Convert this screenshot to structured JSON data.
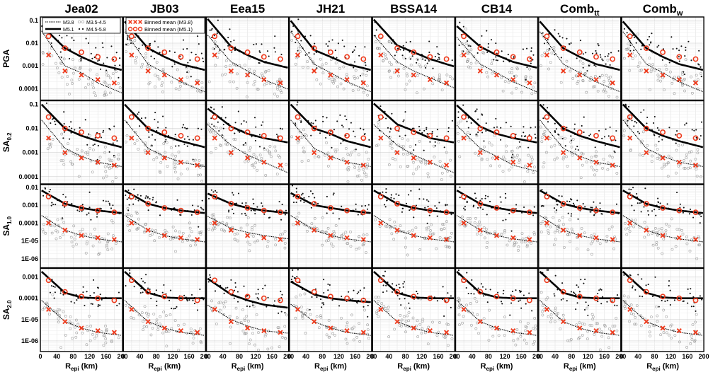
{
  "figure": {
    "columns": [
      {
        "name": "Jea02",
        "base": "Jea02",
        "sub": ""
      },
      {
        "name": "JB03",
        "base": "JB03",
        "sub": ""
      },
      {
        "name": "Eea15",
        "base": "Eea15",
        "sub": ""
      },
      {
        "name": "JH21",
        "base": "JH21",
        "sub": ""
      },
      {
        "name": "BSSA14",
        "base": "BSSA14",
        "sub": ""
      },
      {
        "name": "CB14",
        "base": "CB14",
        "sub": ""
      },
      {
        "name": "Combtt",
        "base": "Comb",
        "sub": "tt"
      },
      {
        "name": "Combw",
        "base": "Comb",
        "sub": "w"
      }
    ],
    "rows": [
      {
        "name": "PGA",
        "base": "PGA",
        "sub": ""
      },
      {
        "name": "SA0.2",
        "base": "SA",
        "sub": "0.2"
      },
      {
        "name": "SA1.0",
        "base": "SA",
        "sub": "1.0"
      },
      {
        "name": "SA2.0",
        "base": "SA",
        "sub": "2.0"
      }
    ],
    "xlabel": {
      "base": "R",
      "sub": "epi",
      "unit": " (km)"
    }
  },
  "legend_left": {
    "entries": [
      "M3.8",
      "M5.1",
      "M3.5-4.5",
      "M4.5-5.8"
    ]
  },
  "legend_right": {
    "entries": [
      "Binned mean (M3.8)",
      "Binned mean (M5.1)"
    ]
  },
  "colors": {
    "curve": "#000000",
    "obs_large": "#111111",
    "obs_small": "#9a9a9a",
    "binned_mean": "#ee3a1c",
    "grid": "#dddddd"
  },
  "chart_data": {
    "type": "scatter",
    "title": "",
    "xlabel": "Repi (km)",
    "ylabel": "",
    "xlim": [
      0,
      200
    ],
    "xticks": [
      0,
      40,
      80,
      120,
      160,
      200
    ],
    "xtick_labels": [
      "0",
      "40",
      "80",
      "120",
      "160",
      "200"
    ],
    "series": [
      {
        "name": "M3.8",
        "kind": "model curve"
      },
      {
        "name": "M5.1",
        "kind": "model curve"
      },
      {
        "name": "M3.5-4.5",
        "kind": "observed"
      },
      {
        "name": "M4.5-5.8",
        "kind": "observed"
      },
      {
        "name": "Binned mean (M3.8)",
        "kind": "binned mean"
      },
      {
        "name": "Binned mean (M5.1)",
        "kind": "binned mean"
      }
    ],
    "bin_centers": [
      20,
      60,
      100,
      140,
      180
    ],
    "rows": [
      {
        "name": "PGA",
        "ylim_log10": [
          -4.5,
          -0.85
        ],
        "ytick_labels": [
          "0.1",
          "0.01",
          "0.001",
          "0.0001"
        ],
        "ytick_values": [
          0.1,
          0.01,
          0.001,
          0.0001
        ],
        "binned_M3_8": [
          0.003,
          0.0006,
          0.0004,
          0.00025,
          0.00018
        ],
        "binned_M5_1": [
          0.02,
          0.006,
          0.004,
          0.0025,
          0.002
        ],
        "curves_by_column": {
          "Jea02": {
            "M3_8": [
              0.012,
              0.001,
              0.0005,
              0.00018,
              9e-05
            ],
            "M5_1": [
              0.03,
              0.006,
              0.0025,
              0.0012,
              0.0008
            ]
          },
          "JB03": {
            "M3_8": [
              0.012,
              0.0012,
              0.0005,
              0.0002,
              0.0001
            ],
            "M5_1": [
              0.04,
              0.006,
              0.0025,
              0.0012,
              0.0008
            ]
          },
          "Eea15": {
            "M3_8": [
              0.01,
              0.0015,
              0.0006,
              0.00025,
              0.00013
            ],
            "M5_1": [
              0.05,
              0.007,
              0.003,
              0.0015,
              0.001
            ]
          },
          "JH21": {
            "M3_8": [
              0.012,
              0.0012,
              0.0005,
              0.0002,
              0.0001
            ],
            "M5_1": [
              0.04,
              0.005,
              0.0025,
              0.0012,
              0.0008
            ]
          },
          "BSSA14": {
            "M3_8": [
              0.01,
              0.0015,
              0.0006,
              0.0003,
              0.00015
            ],
            "M5_1": [
              0.05,
              0.008,
              0.004,
              0.002,
              0.0012
            ]
          },
          "CB14": {
            "M3_8": [
              0.008,
              0.0012,
              0.0005,
              0.0002,
              0.0001
            ],
            "M5_1": [
              0.03,
              0.007,
              0.003,
              0.0015,
              0.001
            ]
          },
          "Combtt": {
            "M3_8": [
              0.012,
              0.0012,
              0.0005,
              0.0002,
              0.0001
            ],
            "M5_1": [
              0.04,
              0.006,
              0.0025,
              0.0012,
              0.0008
            ]
          },
          "Combw": {
            "M3_8": [
              0.012,
              0.0012,
              0.0005,
              0.0002,
              0.0001
            ],
            "M5_1": [
              0.04,
              0.006,
              0.0025,
              0.0012,
              0.0008
            ]
          }
        }
      },
      {
        "name": "SA0.2",
        "ylim_log10": [
          -4.3,
          -0.85
        ],
        "ytick_labels": [
          "0.1",
          "0.01",
          "0.001",
          "0.0001"
        ],
        "ytick_values": [
          0.1,
          0.01,
          0.001,
          0.0001
        ],
        "binned_M3_8": [
          0.004,
          0.001,
          0.0006,
          0.0004,
          0.0003
        ],
        "binned_M5_1": [
          0.03,
          0.01,
          0.007,
          0.005,
          0.004
        ],
        "curves_by_column": {
          "Jea02": {
            "M3_8": [
              0.01,
              0.0015,
              0.0007,
              0.0004,
              0.0003
            ],
            "M5_1": [
              0.05,
              0.01,
              0.005,
              0.003,
              0.002
            ]
          },
          "JB03": {
            "M3_8": [
              0.01,
              0.0015,
              0.0007,
              0.0004,
              0.0003
            ],
            "M5_1": [
              0.05,
              0.01,
              0.005,
              0.003,
              0.002
            ]
          },
          "Eea15": {
            "M3_8": [
              0.008,
              0.002,
              0.0008,
              0.0004,
              0.0002
            ],
            "M5_1": [
              0.04,
              0.012,
              0.006,
              0.004,
              0.003
            ]
          },
          "JH21": {
            "M3_8": [
              0.01,
              0.0015,
              0.0007,
              0.0004,
              0.0003
            ],
            "M5_1": [
              0.05,
              0.01,
              0.006,
              0.003,
              0.002
            ]
          },
          "BSSA14": {
            "M3_8": [
              0.008,
              0.002,
              0.0008,
              0.0004,
              0.0002
            ],
            "M5_1": [
              0.06,
              0.015,
              0.008,
              0.004,
              0.003
            ]
          },
          "CB14": {
            "M3_8": [
              0.007,
              0.0015,
              0.0007,
              0.0003,
              0.0002
            ],
            "M5_1": [
              0.05,
              0.012,
              0.006,
              0.004,
              0.003
            ]
          },
          "Combtt": {
            "M3_8": [
              0.01,
              0.0015,
              0.0007,
              0.0004,
              0.0003
            ],
            "M5_1": [
              0.05,
              0.01,
              0.005,
              0.003,
              0.002
            ]
          },
          "Combw": {
            "M3_8": [
              0.01,
              0.0015,
              0.0007,
              0.0004,
              0.0003
            ],
            "M5_1": [
              0.05,
              0.01,
              0.005,
              0.003,
              0.002
            ]
          }
        }
      },
      {
        "name": "SA1.0",
        "ylim_log10": [
          -6.5,
          -1.85
        ],
        "ytick_labels": [
          "0.01",
          "0.001",
          "0.0001",
          "1E-05",
          "1E-06"
        ],
        "ytick_values": [
          0.01,
          0.001,
          0.0001,
          1e-05,
          1e-06
        ],
        "binned_M3_8": [
          0.0001,
          4e-05,
          2e-05,
          1.5e-05,
          1.2e-05
        ],
        "binned_M5_1": [
          0.003,
          0.0012,
          0.0007,
          0.0005,
          0.0004
        ],
        "curves_by_column": {
          "Jea02": {
            "M3_8": [
              0.00015,
              4e-05,
              2e-05,
              1.3e-05,
              1e-05
            ],
            "M5_1": [
              0.004,
              0.0012,
              0.0007,
              0.0005,
              0.0004
            ]
          },
          "JB03": {
            "M3_8": [
              0.00015,
              4e-05,
              2e-05,
              1.3e-05,
              1e-05
            ],
            "M5_1": [
              0.004,
              0.0012,
              0.0007,
              0.0005,
              0.0004
            ]
          },
          "Eea15": {
            "M3_8": [
              0.00015,
              5e-05,
              3e-05,
              2e-05,
              1.5e-05
            ],
            "M5_1": [
              0.003,
              0.0012,
              0.0007,
              0.0005,
              0.0004
            ]
          },
          "JH21": {
            "M3_8": [
              0.00015,
              4e-05,
              2e-05,
              1.3e-05,
              1e-05
            ],
            "M5_1": [
              0.003,
              0.001,
              0.0007,
              0.0005,
              0.0004
            ]
          },
          "BSSA14": {
            "M3_8": [
              0.00015,
              4e-05,
              2e-05,
              1.3e-05,
              1e-05
            ],
            "M5_1": [
              0.004,
              0.0012,
              0.0007,
              0.0005,
              0.0004
            ]
          },
          "CB14": {
            "M3_8": [
              0.00015,
              4e-05,
              2e-05,
              1.3e-05,
              1e-05
            ],
            "M5_1": [
              0.004,
              0.0012,
              0.0007,
              0.0005,
              0.0004
            ]
          },
          "Combtt": {
            "M3_8": [
              0.00015,
              4e-05,
              2e-05,
              1.3e-05,
              1e-05
            ],
            "M5_1": [
              0.004,
              0.0012,
              0.0007,
              0.0005,
              0.0004
            ]
          },
          "Combw": {
            "M3_8": [
              0.00015,
              4e-05,
              2e-05,
              1.3e-05,
              1e-05
            ],
            "M5_1": [
              0.004,
              0.0012,
              0.0007,
              0.0005,
              0.0004
            ]
          }
        }
      },
      {
        "name": "SA2.0",
        "ylim_log10": [
          -6.5,
          -2.6
        ],
        "ytick_labels": [
          "0.001",
          "0.0001",
          "1E-05",
          "1E-06"
        ],
        "ytick_values": [
          0.001,
          0.0001,
          1e-05,
          1e-06
        ],
        "binned_M3_8": [
          3e-05,
          8e-06,
          4e-06,
          3e-06,
          2.5e-06
        ],
        "binned_M5_1": [
          0.0007,
          0.0002,
          0.00012,
          0.0001,
          8e-05
        ],
        "curves_by_column": {
          "Jea02": {
            "M3_8": [
              4e-05,
              8e-06,
              4e-06,
              2.5e-06,
              2e-06
            ],
            "M5_1": [
              0.0009,
              0.00018,
              0.00011,
              0.0001,
              0.0001
            ]
          },
          "JB03": {
            "M3_8": [
              4e-05,
              8e-06,
              4e-06,
              2.5e-06,
              2e-06
            ],
            "M5_1": [
              0.0009,
              0.00018,
              0.00011,
              0.0001,
              0.0001
            ]
          },
          "Eea15": {
            "M3_8": [
              3e-05,
              1e-05,
              5e-06,
              3e-06,
              2.5e-06
            ],
            "M5_1": [
              0.0005,
              0.00015,
              8e-05,
              5e-05,
              4e-05
            ]
          },
          "JH21": {
            "M3_8": [
              3e-05,
              8e-06,
              4e-06,
              2.5e-06,
              2e-06
            ],
            "M5_1": [
              0.0004,
              0.00015,
              0.0001,
              8e-05,
              7e-05
            ]
          },
          "BSSA14": {
            "M3_8": [
              4e-05,
              8e-06,
              4e-06,
              2.5e-06,
              2e-06
            ],
            "M5_1": [
              0.0009,
              0.00018,
              0.00011,
              0.0001,
              0.0001
            ]
          },
          "CB14": {
            "M3_8": [
              4e-05,
              8e-06,
              4e-06,
              2.5e-06,
              2e-06
            ],
            "M5_1": [
              0.0009,
              0.00018,
              0.00011,
              0.0001,
              0.0001
            ]
          },
          "Combtt": {
            "M3_8": [
              4e-05,
              8e-06,
              4e-06,
              2.5e-06,
              2e-06
            ],
            "M5_1": [
              0.0009,
              0.00018,
              0.00011,
              0.0001,
              0.0001
            ]
          },
          "Combw": {
            "M3_8": [
              4e-05,
              8e-06,
              4e-06,
              2.5e-06,
              2e-06
            ],
            "M5_1": [
              0.0009,
              0.00018,
              0.00011,
              0.0001,
              0.0001
            ]
          }
        }
      }
    ]
  }
}
